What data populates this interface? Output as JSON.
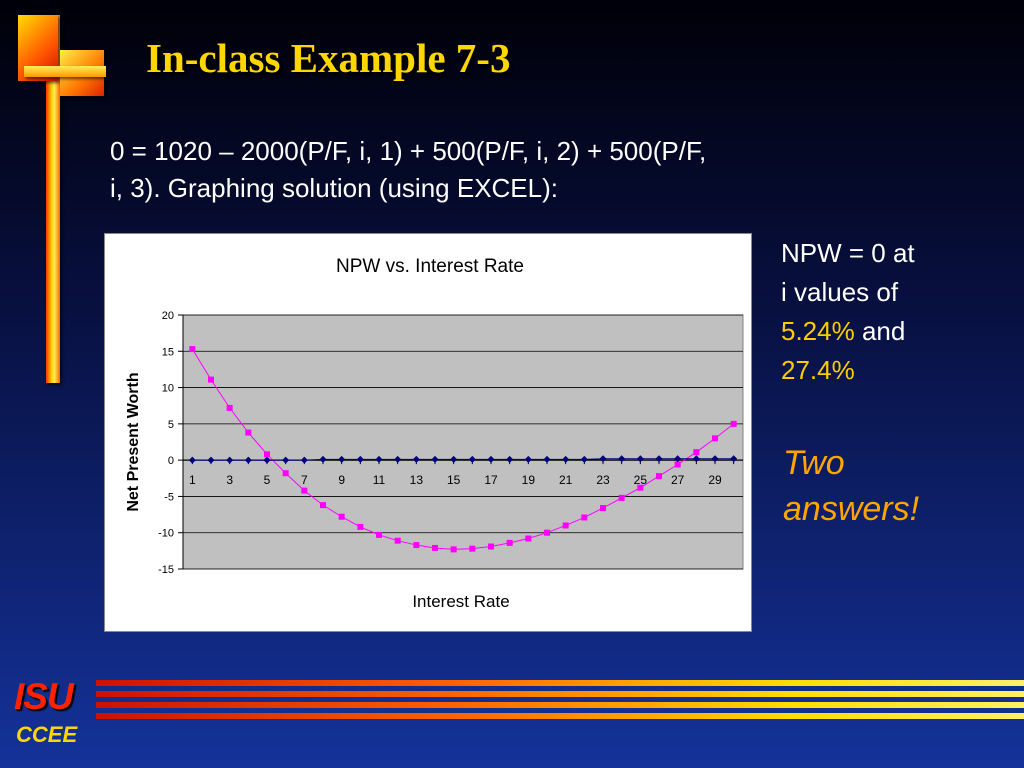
{
  "slide": {
    "title": "In-class Example 7-3",
    "equation_line1": "0 = 1020 – 2000(P/F, i, 1) + 500(P/F, i, 2) + 500(P/F,",
    "equation_line2": "i, 3).  Graphing solution (using EXCEL):",
    "note_line1": "NPW = 0 at",
    "note_line2": "i values of",
    "note_value1": "5.24%",
    "note_and": "and",
    "note_value2": "27.4%",
    "two_answers_line1": "Two",
    "two_answers_line2": "answers!",
    "footer_isu": "ISU",
    "footer_ccee": "CCEE"
  },
  "colors": {
    "title": "#ffd700",
    "highlight": "#ffcc00",
    "two_answers": "#ffa500",
    "isu": "#ff2200",
    "plot_bg": "#c0c0c0",
    "npw_series": "#ff00ff",
    "zero_series": "#000080"
  },
  "chart_data": {
    "type": "line",
    "title": "NPW vs. Interest Rate",
    "xlabel": "Interest Rate",
    "ylabel": "Net Present Worth",
    "x": [
      1,
      2,
      3,
      4,
      5,
      6,
      7,
      8,
      9,
      10,
      11,
      12,
      13,
      14,
      15,
      16,
      17,
      18,
      19,
      20,
      21,
      22,
      23,
      24,
      25,
      26,
      27,
      28,
      29,
      30
    ],
    "x_tick_labels": [
      "1",
      "3",
      "5",
      "7",
      "9",
      "11",
      "13",
      "15",
      "17",
      "19",
      "21",
      "23",
      "25",
      "27",
      "29"
    ],
    "ylim": [
      -15,
      20
    ],
    "y_ticks": [
      -15,
      -10,
      -5,
      0,
      5,
      10,
      15,
      20
    ],
    "grid": true,
    "legend": "none",
    "series": [
      {
        "color": "#ff00ff",
        "marker": "square",
        "values": [
          15.3,
          11.1,
          7.2,
          3.8,
          0.8,
          -1.8,
          -4.2,
          -6.2,
          -7.8,
          -9.2,
          -10.3,
          -11.1,
          -11.7,
          -12.1,
          -12.3,
          -12.2,
          -11.9,
          -11.4,
          -10.8,
          -10.0,
          -9.0,
          -7.9,
          -6.6,
          -5.2,
          -3.8,
          -2.2,
          -0.6,
          1.1,
          3.0,
          5.0
        ]
      },
      {
        "color": "#000080",
        "marker": "diamond",
        "values": [
          0,
          0,
          0,
          0,
          0,
          0,
          0,
          0.1,
          0.1,
          0.1,
          0.1,
          0.1,
          0.1,
          0.1,
          0.1,
          0.1,
          0.1,
          0.1,
          0.1,
          0.1,
          0.1,
          0.1,
          0.2,
          0.2,
          0.2,
          0.2,
          0.2,
          0.2,
          0.2,
          0.2
        ]
      }
    ]
  }
}
